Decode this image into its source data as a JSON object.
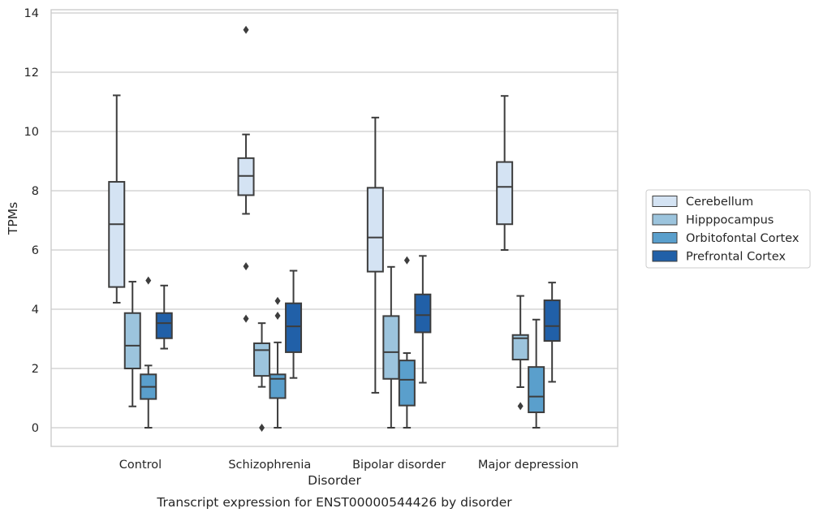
{
  "chart_data": {
    "type": "box",
    "caption": "Transcript expression for ENST00000544426 by disorder",
    "xlabel": "Disorder",
    "ylabel": "TPMs",
    "ylim": [
      -0.6,
      14.1
    ],
    "yticks": [
      0,
      2,
      4,
      6,
      8,
      10,
      12,
      14
    ],
    "grid": "horizontal",
    "legend_position": "right",
    "categories": [
      "Control",
      "Schizophrenia",
      "Bipolar disorder",
      "Major depression"
    ],
    "series": [
      {
        "name": "Cerebellum",
        "color": "#d4e3f3",
        "boxes": [
          {
            "whislo": 4.22,
            "q1": 4.75,
            "med": 6.87,
            "q3": 8.3,
            "whishi": 11.22,
            "fliers": []
          },
          {
            "whislo": 7.22,
            "q1": 7.85,
            "med": 8.5,
            "q3": 9.1,
            "whishi": 9.9,
            "fliers": [
              13.43,
              5.45,
              3.68
            ]
          },
          {
            "whislo": 1.18,
            "q1": 5.27,
            "med": 6.42,
            "q3": 8.1,
            "whishi": 10.47,
            "fliers": []
          },
          {
            "whislo": 6.0,
            "q1": 6.87,
            "med": 8.13,
            "q3": 8.97,
            "whishi": 11.2,
            "fliers": []
          }
        ]
      },
      {
        "name": "Hipppocampus",
        "color": "#9cc4dd",
        "boxes": [
          {
            "whislo": 0.72,
            "q1": 2.0,
            "med": 2.77,
            "q3": 3.87,
            "whishi": 4.93,
            "fliers": []
          },
          {
            "whislo": 1.38,
            "q1": 1.75,
            "med": 2.62,
            "q3": 2.85,
            "whishi": 3.53,
            "fliers": [
              0.0
            ]
          },
          {
            "whislo": 0.0,
            "q1": 1.65,
            "med": 2.55,
            "q3": 3.77,
            "whishi": 5.43,
            "fliers": []
          },
          {
            "whislo": 1.37,
            "q1": 2.3,
            "med": 3.02,
            "q3": 3.13,
            "whishi": 4.45,
            "fliers": [
              0.73
            ]
          }
        ]
      },
      {
        "name": "Orbitofontal Cortex",
        "color": "#5a9fcc",
        "boxes": [
          {
            "whislo": 0.0,
            "q1": 0.97,
            "med": 1.38,
            "q3": 1.8,
            "whishi": 2.1,
            "fliers": [
              4.97
            ]
          },
          {
            "whislo": 0.0,
            "q1": 1.0,
            "med": 1.65,
            "q3": 1.8,
            "whishi": 2.88,
            "fliers": [
              4.28,
              3.78
            ]
          },
          {
            "whislo": 0.0,
            "q1": 0.75,
            "med": 1.62,
            "q3": 2.27,
            "whishi": 2.52,
            "fliers": [
              5.65
            ]
          },
          {
            "whislo": 0.0,
            "q1": 0.52,
            "med": 1.05,
            "q3": 2.05,
            "whishi": 3.65,
            "fliers": []
          }
        ]
      },
      {
        "name": "Prefrontal Cortex",
        "color": "#2160a8",
        "boxes": [
          {
            "whislo": 2.67,
            "q1": 3.02,
            "med": 3.53,
            "q3": 3.87,
            "whishi": 4.8,
            "fliers": []
          },
          {
            "whislo": 1.68,
            "q1": 2.55,
            "med": 3.42,
            "q3": 4.2,
            "whishi": 5.3,
            "fliers": []
          },
          {
            "whislo": 1.52,
            "q1": 3.22,
            "med": 3.8,
            "q3": 4.5,
            "whishi": 5.8,
            "fliers": []
          },
          {
            "whislo": 1.55,
            "q1": 2.93,
            "med": 3.43,
            "q3": 4.3,
            "whishi": 4.9,
            "fliers": []
          }
        ]
      }
    ]
  }
}
